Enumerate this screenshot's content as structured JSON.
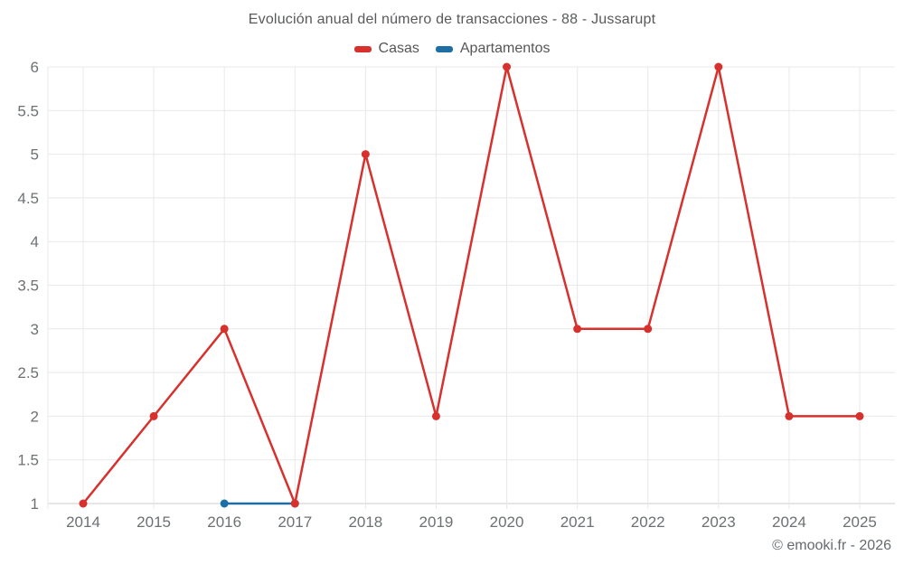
{
  "chart_data": {
    "type": "line",
    "title": "Evolución anual del número de transacciones - 88 - Jussarupt",
    "categories": [
      "2014",
      "2015",
      "2016",
      "2017",
      "2018",
      "2019",
      "2020",
      "2021",
      "2022",
      "2023",
      "2024",
      "2025"
    ],
    "series": [
      {
        "name": "Casas",
        "color": "#d7312e",
        "x": [
          "2014",
          "2015",
          "2016",
          "2017",
          "2018",
          "2019",
          "2020",
          "2021",
          "2022",
          "2023",
          "2024",
          "2025"
        ],
        "values": [
          1,
          2,
          3,
          1,
          5,
          2,
          6,
          3,
          3,
          6,
          2,
          2
        ]
      },
      {
        "name": "Apartamentos",
        "color": "#1c6ea4",
        "x": [
          "2016",
          "2017"
        ],
        "values": [
          1,
          1
        ]
      }
    ],
    "yticks": [
      1,
      1.5,
      2,
      2.5,
      3,
      3.5,
      4,
      4.5,
      5,
      5.5,
      6
    ],
    "ylim": [
      1,
      6
    ],
    "grid": true,
    "legend_position": "top"
  },
  "footer": {
    "copyright": "© emooki.fr - 2026"
  }
}
